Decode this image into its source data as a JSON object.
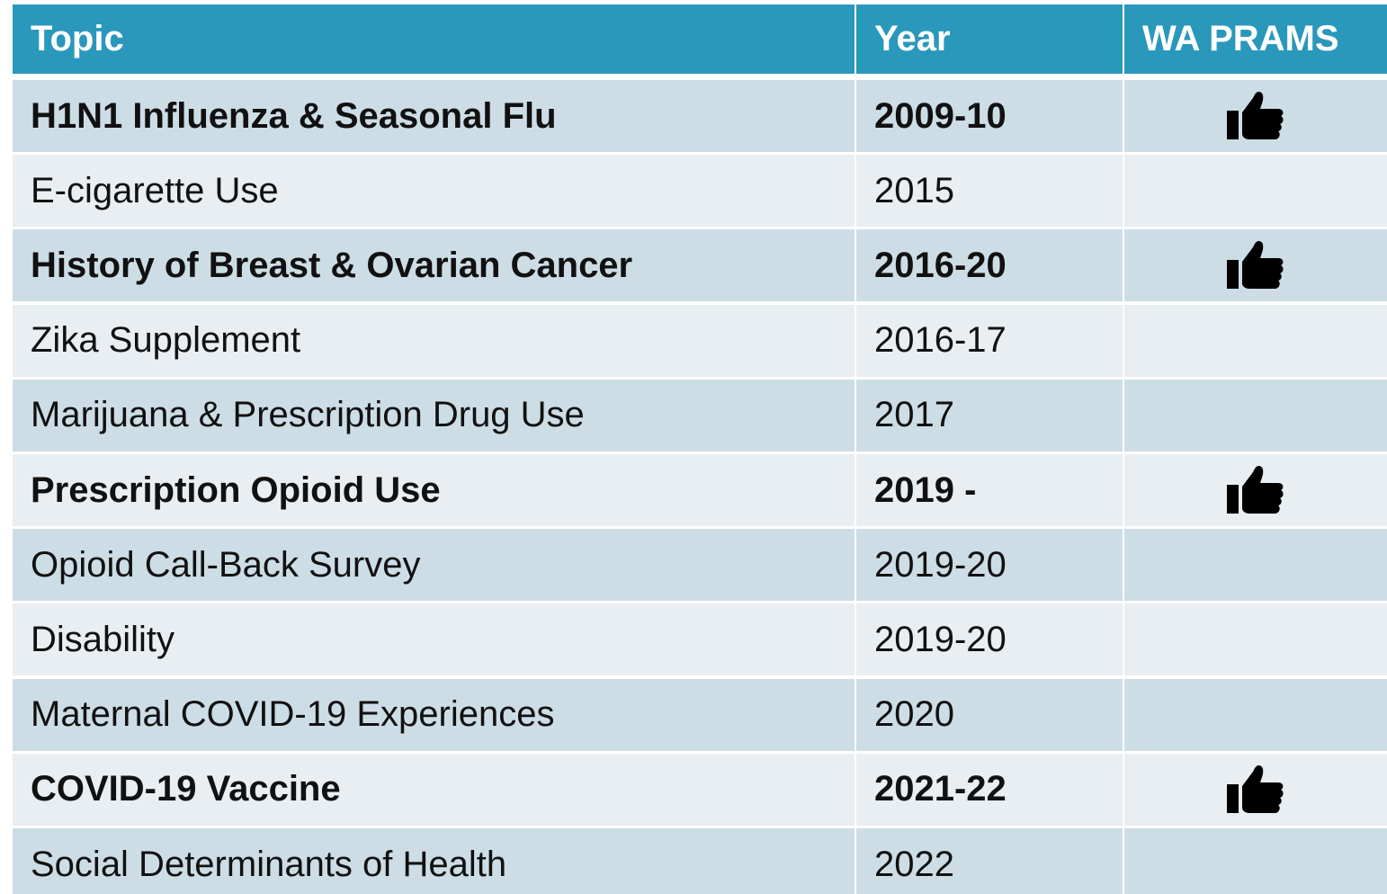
{
  "table": {
    "header": [
      "Topic",
      "Year",
      "WA PRAMS"
    ],
    "rows": [
      {
        "topic": "H1N1 Influenza & Seasonal Flu",
        "year": "2009-10",
        "wa_prams": true
      },
      {
        "topic": "E-cigarette Use",
        "year": "2015",
        "wa_prams": false
      },
      {
        "topic": "History of Breast & Ovarian Cancer",
        "year": "2016-20",
        "wa_prams": true
      },
      {
        "topic": "Zika Supplement",
        "year": "2016-17",
        "wa_prams": false
      },
      {
        "topic": "Marijuana & Prescription Drug Use",
        "year": "2017",
        "wa_prams": false
      },
      {
        "topic": "Prescription Opioid Use",
        "year": "2019 -",
        "wa_prams": true
      },
      {
        "topic": "Opioid Call-Back Survey",
        "year": "2019-20",
        "wa_prams": false
      },
      {
        "topic": "Disability",
        "year": "2019-20",
        "wa_prams": false
      },
      {
        "topic": "Maternal COVID-19 Experiences",
        "year": "2020",
        "wa_prams": false
      },
      {
        "topic": "COVID-19 Vaccine",
        "year": "2021-22",
        "wa_prams": true
      },
      {
        "topic": "Social Determinants of Health",
        "year": "2022",
        "wa_prams": false
      }
    ]
  }
}
